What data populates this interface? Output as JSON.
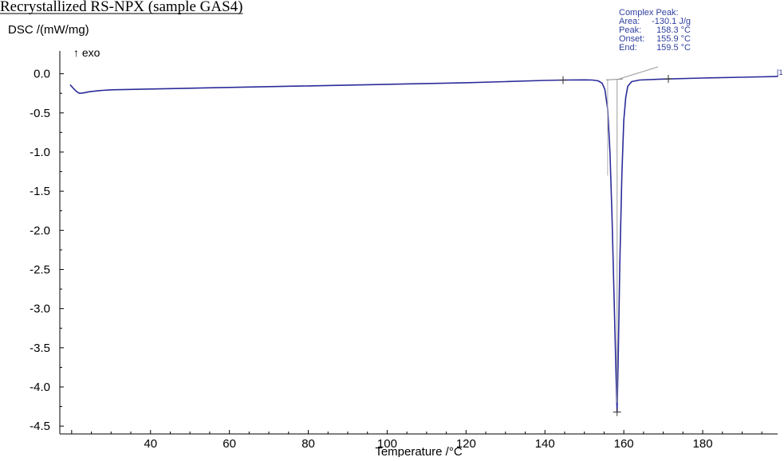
{
  "page": {
    "title": "Recrystallized RS-NPX (sample GAS4)"
  },
  "chart_data": {
    "type": "line",
    "title": "",
    "ylabel": "DSC /(mW/mg)",
    "xlabel": "Temperature /°C",
    "exo_label": "↑ exo",
    "xlim": [
      17,
      199
    ],
    "ylim": [
      -4.6,
      0.23
    ],
    "x_ticks": [
      40,
      60,
      80,
      100,
      120,
      140,
      160,
      180
    ],
    "y_ticks": [
      0.0,
      -0.5,
      -1.0,
      -1.5,
      -2.0,
      -2.5,
      -3.0,
      -3.5,
      -4.0,
      -4.5
    ],
    "y_tick_labels": [
      "0.0",
      "-0.5",
      "-1.0",
      "-1.5",
      "-2.0",
      "-2.5",
      "-3.0",
      "-3.5",
      "-4.0",
      "-4.5"
    ],
    "line_color": "#2b2b9a",
    "series": [
      {
        "name": "",
        "x": [
          19.6,
          20.5,
          21.3,
          22.0,
          23.0,
          24.5,
          27,
          30,
          35,
          40,
          50,
          60,
          70,
          80,
          90,
          100,
          110,
          120,
          130,
          140,
          145,
          150,
          152,
          153.5,
          154.5,
          155.2,
          155.9,
          156.5,
          157.0,
          157.5,
          158.0,
          158.3,
          158.6,
          159.0,
          159.5,
          160.0,
          160.5,
          161.0,
          162,
          164,
          170,
          180,
          190,
          199
        ],
        "y": [
          -0.14,
          -0.19,
          -0.23,
          -0.25,
          -0.245,
          -0.23,
          -0.215,
          -0.205,
          -0.2,
          -0.195,
          -0.185,
          -0.175,
          -0.165,
          -0.155,
          -0.145,
          -0.135,
          -0.125,
          -0.115,
          -0.1,
          -0.085,
          -0.08,
          -0.078,
          -0.08,
          -0.09,
          -0.12,
          -0.2,
          -0.45,
          -1.0,
          -1.8,
          -2.8,
          -3.8,
          -4.32,
          -3.6,
          -2.4,
          -1.3,
          -0.6,
          -0.3,
          -0.16,
          -0.1,
          -0.08,
          -0.068,
          -0.055,
          -0.045,
          -0.035
        ]
      }
    ],
    "markers": [
      {
        "x": 144.6,
        "y": -0.082
      },
      {
        "x": 171.3,
        "y": -0.065
      },
      {
        "x": 158.3,
        "y": -4.32
      }
    ],
    "baseline": {
      "x": [
        155.5,
        159.8
      ],
      "y": [
        -0.078,
        -0.068
      ]
    },
    "peak_annotation": {
      "heading": "Complex Peak:",
      "rows": [
        {
          "label": "Area:",
          "value": "-130.1 J/g"
        },
        {
          "label": "Peak:",
          "value": "158.3 °C"
        },
        {
          "label": "Onset:",
          "value": "155.9 °C"
        },
        {
          "label": "End:",
          "value": "159.5 °C"
        }
      ],
      "color": "#2f3fa0"
    },
    "curve_end_label": "[1",
    "grid": false
  }
}
